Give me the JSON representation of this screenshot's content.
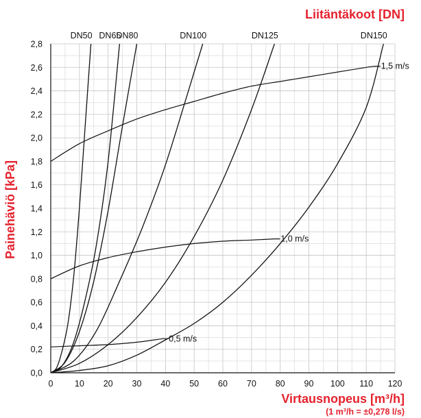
{
  "chart_data": {
    "type": "line",
    "title": "Liitäntäkoot [DN]",
    "xlabel": "Virtausnopeus [m³/h]",
    "xlabel_note": "(1 m³/h = ±0,278 l/s)",
    "ylabel": "Painehäviö [kPa]",
    "xlim": [
      0,
      120
    ],
    "ylim": [
      0,
      2.8
    ],
    "x_ticks": [
      "0",
      "10",
      "20",
      "30",
      "40",
      "50",
      "60",
      "70",
      "80",
      "90",
      "100",
      "110",
      "120"
    ],
    "y_ticks": [
      "0,0",
      "0,2",
      "0,4",
      "0,6",
      "0,8",
      "1,0",
      "1,2",
      "1,4",
      "1,6",
      "1,8",
      "2,0",
      "2,2",
      "2,4",
      "2,6",
      "2,8"
    ],
    "grid": true,
    "series": [
      {
        "name": "DN50",
        "x": [
          0,
          2,
          4,
          6,
          8,
          10,
          12,
          14
        ],
        "y": [
          0,
          0.04,
          0.19,
          0.42,
          0.82,
          1.4,
          2.1,
          2.8
        ]
      },
      {
        "name": "DN65",
        "x": [
          0,
          4,
          8,
          12,
          16,
          20,
          24
        ],
        "y": [
          0,
          0.06,
          0.26,
          0.62,
          1.1,
          1.8,
          2.8
        ]
      },
      {
        "name": "DN80",
        "x": [
          0,
          5,
          10,
          15,
          20,
          25,
          30
        ],
        "y": [
          0,
          0.09,
          0.35,
          0.78,
          1.38,
          2.1,
          2.8
        ]
      },
      {
        "name": "DN100",
        "x": [
          0,
          8,
          16,
          24,
          32,
          40,
          48,
          53
        ],
        "y": [
          0,
          0.1,
          0.36,
          0.78,
          1.24,
          1.77,
          2.4,
          2.8
        ]
      },
      {
        "name": "DN125",
        "x": [
          0,
          10,
          20,
          30,
          40,
          50,
          60,
          70,
          78
        ],
        "y": [
          0,
          0.08,
          0.24,
          0.47,
          0.77,
          1.16,
          1.64,
          2.24,
          2.8
        ]
      },
      {
        "name": "DN150",
        "x": [
          0,
          10,
          20,
          30,
          40,
          50,
          60,
          70,
          80,
          90,
          100,
          110,
          116
        ],
        "y": [
          0,
          0.02,
          0.06,
          0.15,
          0.28,
          0.42,
          0.6,
          0.83,
          1.1,
          1.41,
          1.78,
          2.26,
          2.8
        ]
      }
    ],
    "velocity_lines": [
      {
        "label": "1,5 m/s",
        "x": [
          0,
          10,
          20,
          30,
          40,
          50,
          60,
          70,
          80,
          90,
          100,
          110,
          113
        ],
        "y": [
          1.8,
          1.95,
          2.06,
          2.16,
          2.24,
          2.31,
          2.38,
          2.44,
          2.48,
          2.52,
          2.56,
          2.6,
          2.61
        ]
      },
      {
        "label": "1,0 m/s",
        "x": [
          0,
          10,
          20,
          30,
          40,
          50,
          60,
          70,
          78
        ],
        "y": [
          0.8,
          0.91,
          0.98,
          1.03,
          1.07,
          1.1,
          1.12,
          1.13,
          1.14
        ]
      },
      {
        "label": "0,5 m/s",
        "x": [
          0,
          10,
          20,
          30,
          39
        ],
        "y": [
          0.22,
          0.23,
          0.24,
          0.26,
          0.29
        ]
      }
    ]
  }
}
